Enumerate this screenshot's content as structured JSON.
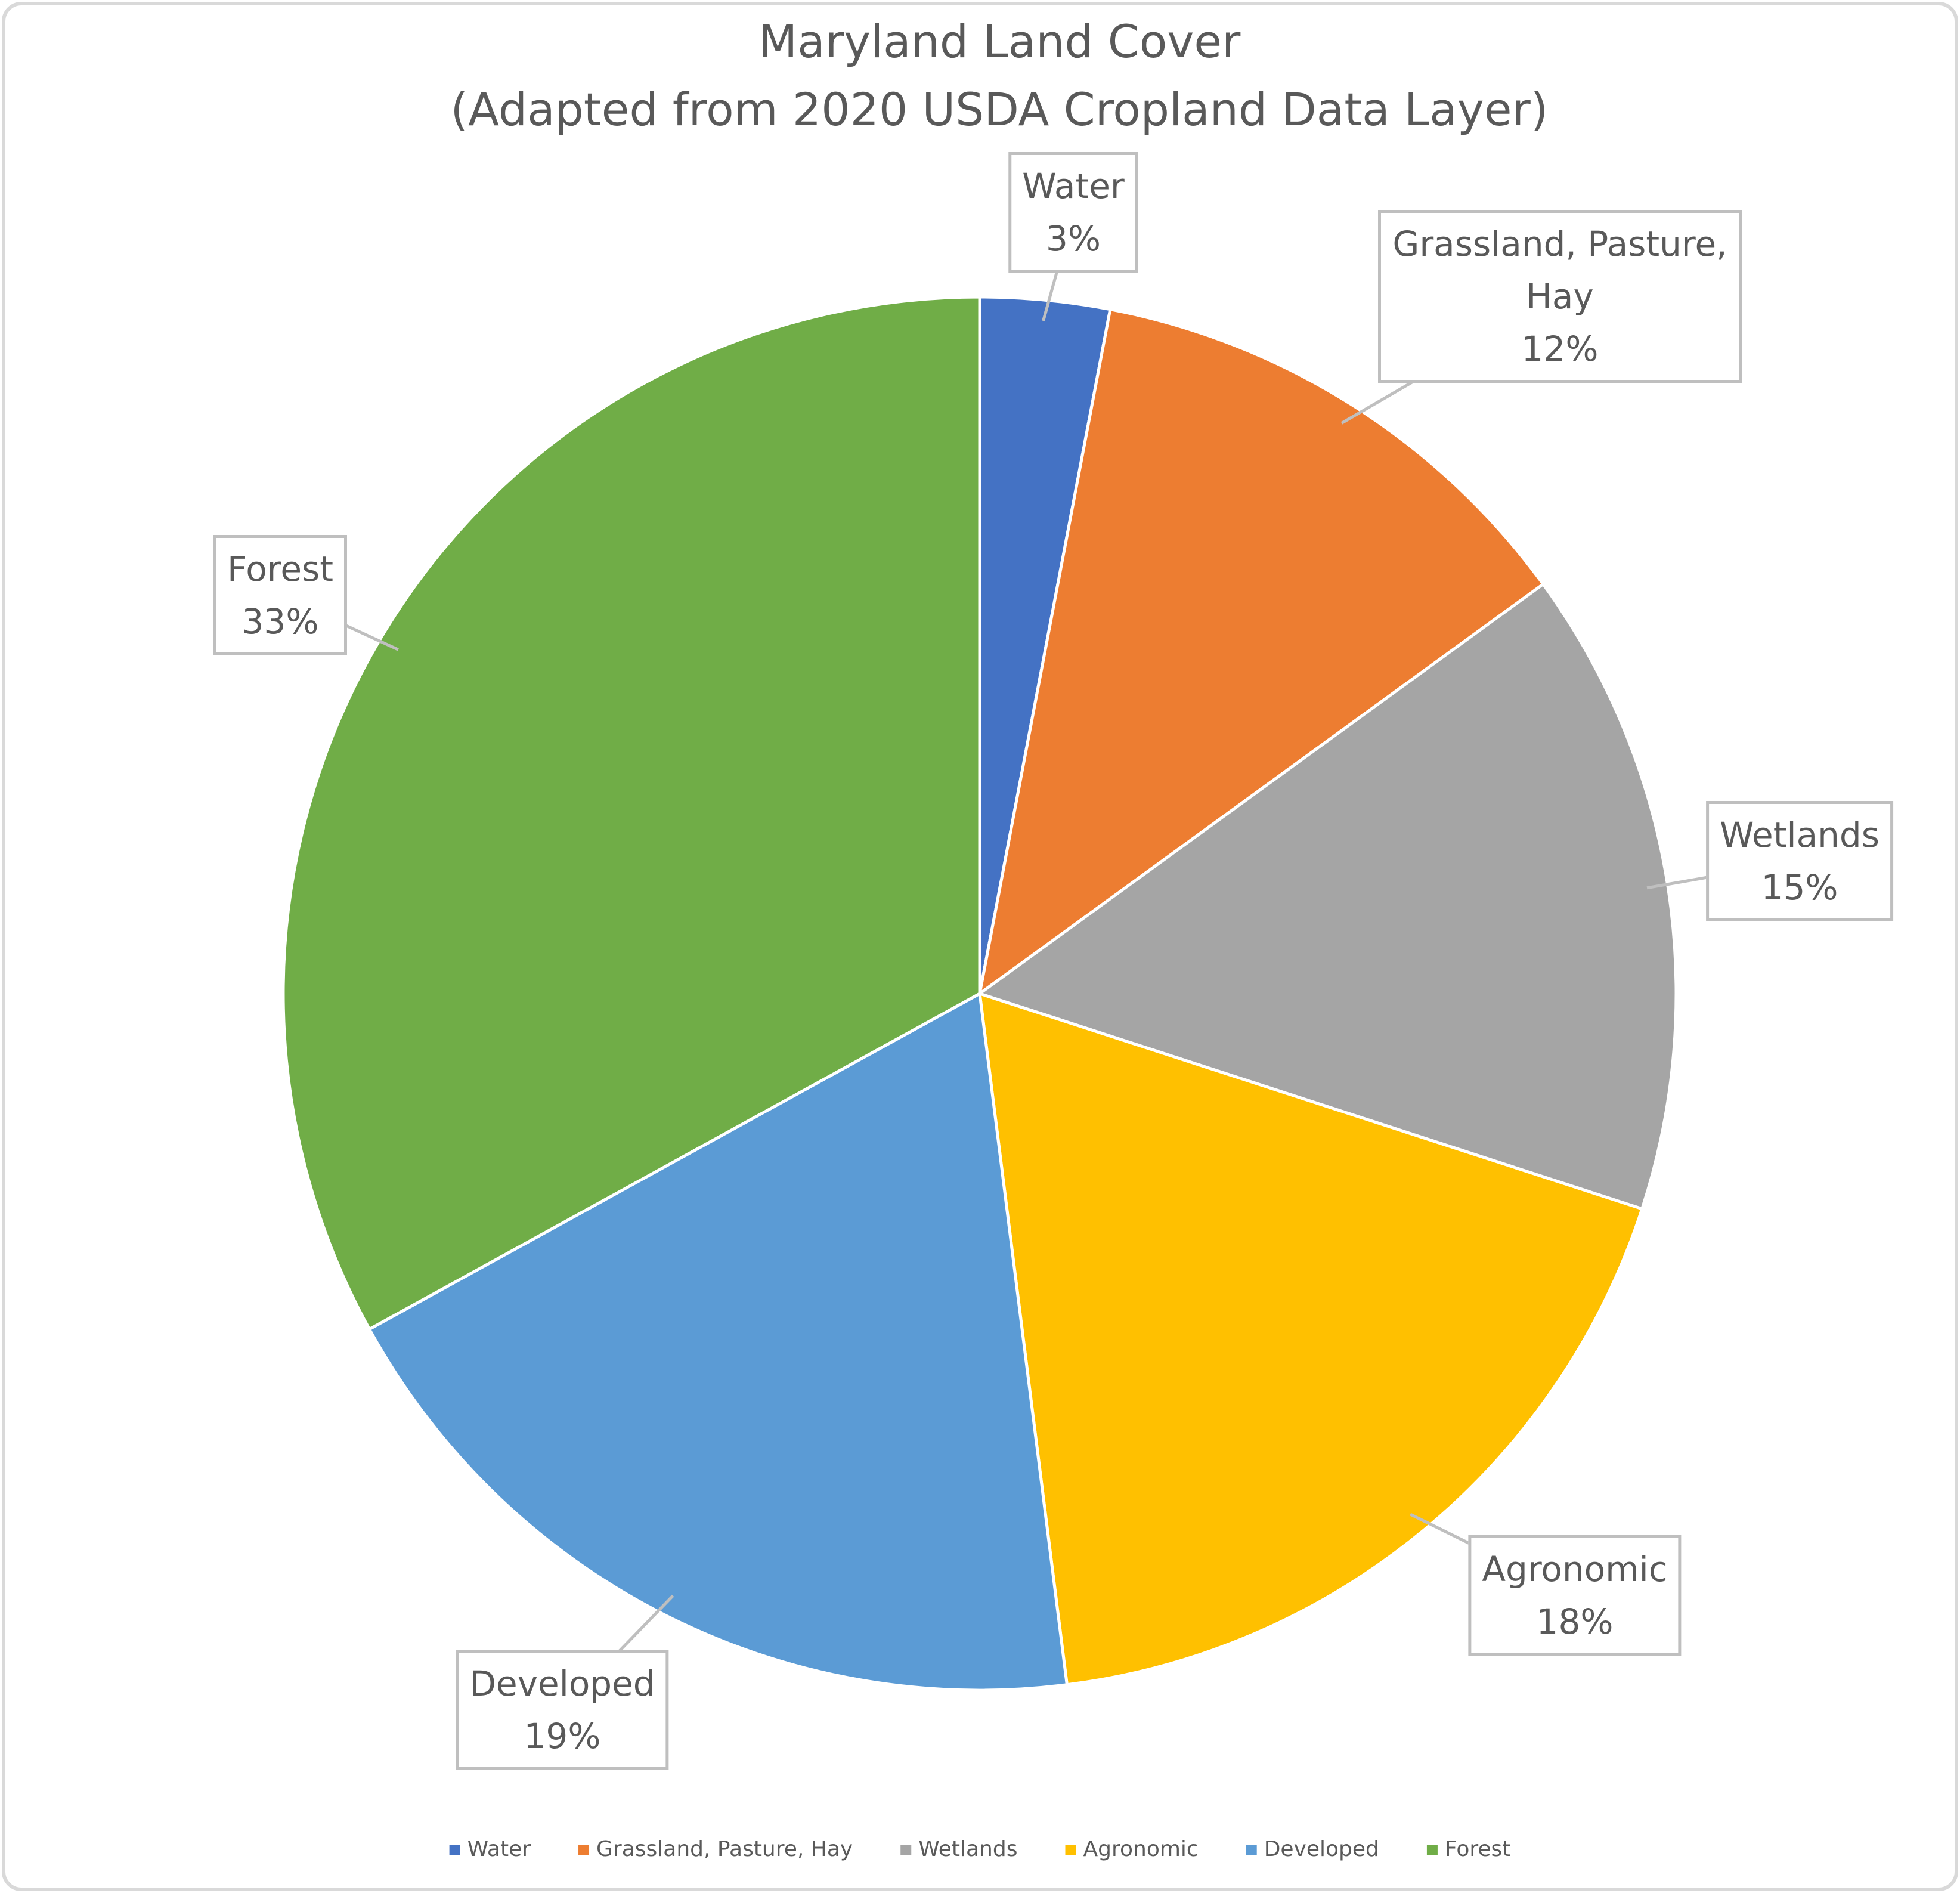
{
  "chart_data": {
    "type": "pie",
    "title": "Maryland Land Cover",
    "subtitle": "(Adapted from 2020 USDA Cropland Data Layer)",
    "categories": [
      "Water",
      "Grassland, Pasture, Hay",
      "Wetlands",
      "Agronomic",
      "Developed",
      "Forest"
    ],
    "values": [
      3,
      12,
      15,
      18,
      19,
      33
    ],
    "value_labels": [
      "3%",
      "12%",
      "15%",
      "18%",
      "19%",
      "33%"
    ],
    "colors": [
      "#4472c4",
      "#ed7d31",
      "#a5a5a5",
      "#ffc000",
      "#5b9bd5",
      "#70ad47"
    ],
    "legend": "bottom"
  }
}
